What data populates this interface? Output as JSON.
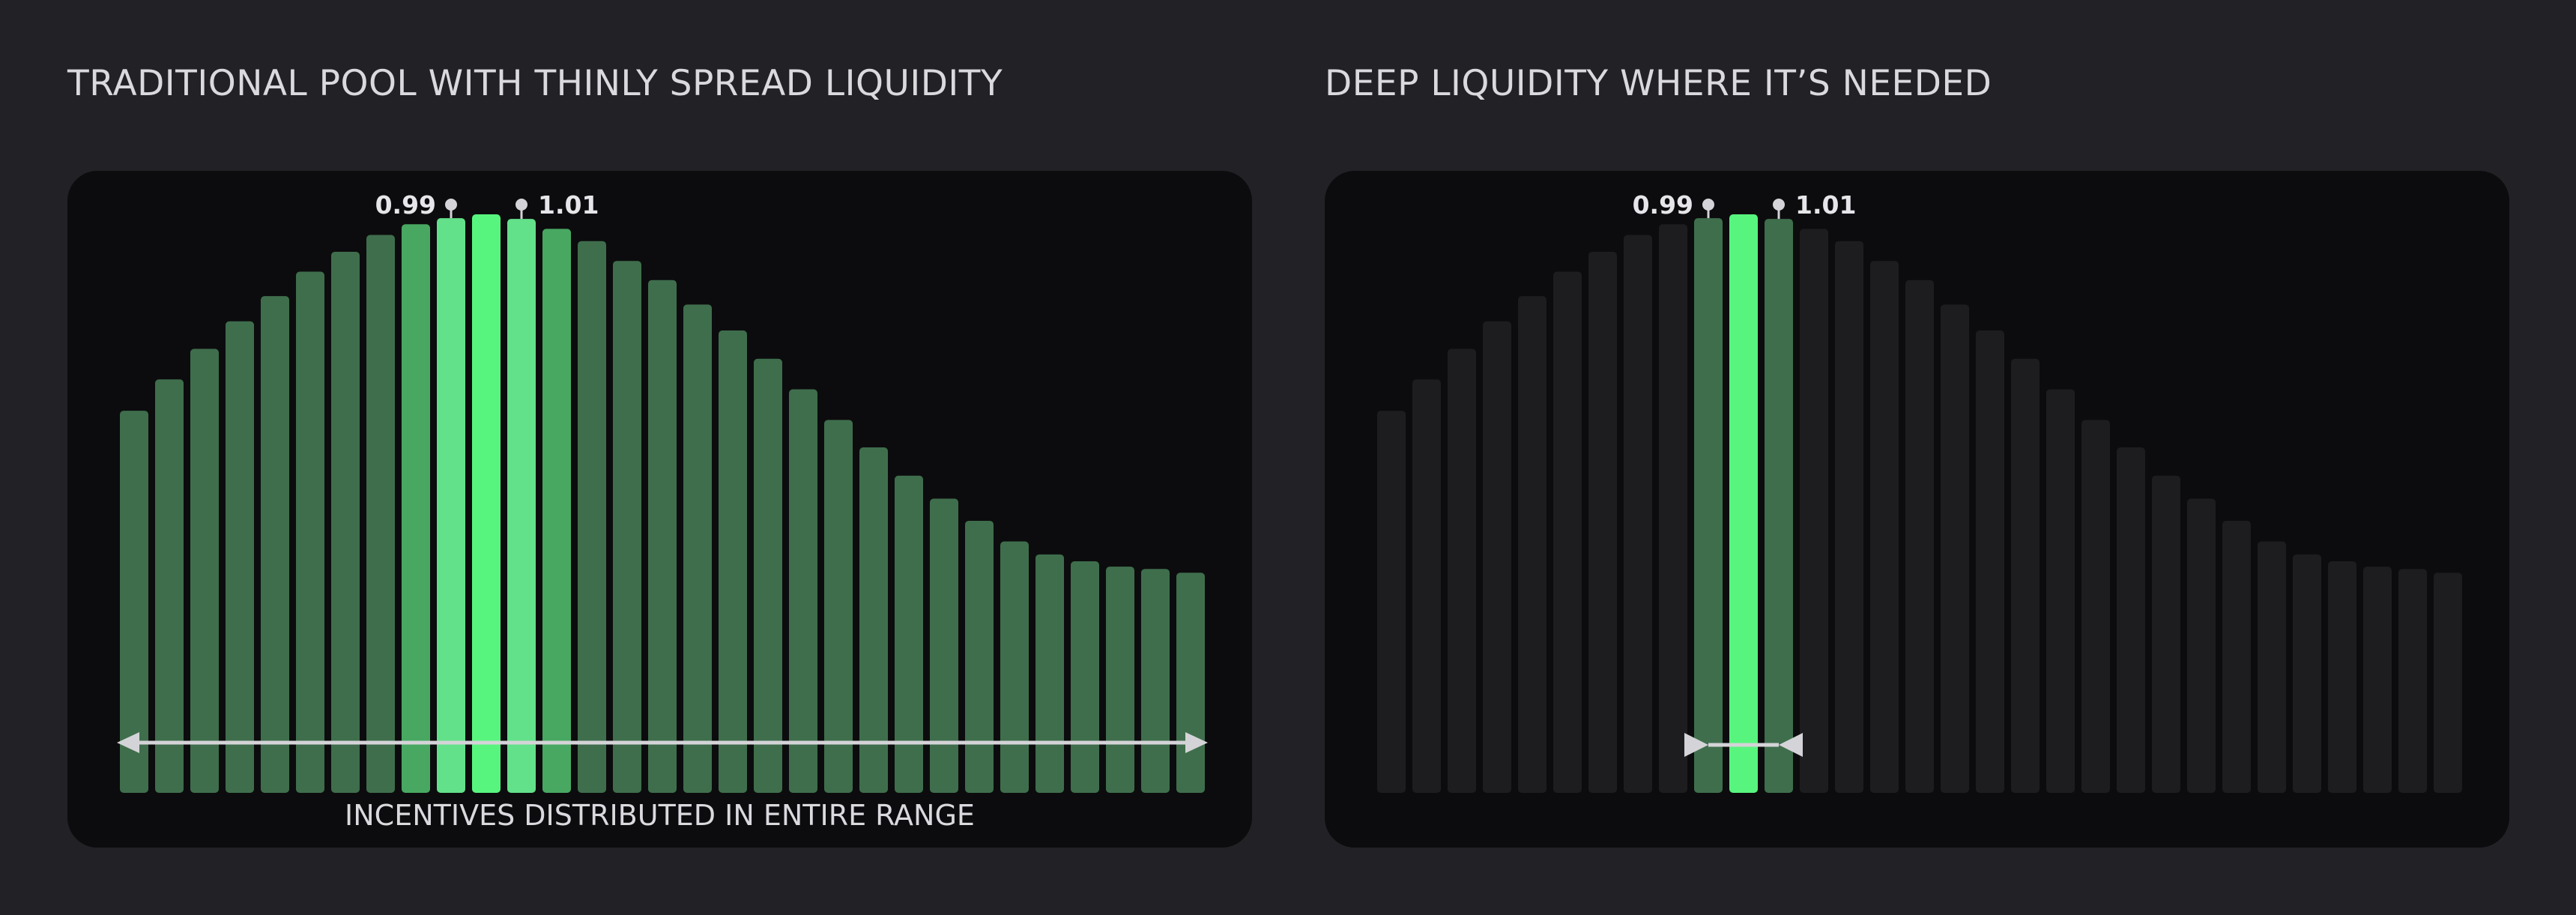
{
  "chart_data": [
    {
      "type": "bar",
      "title": "TRADITIONAL POOL WITH THINLY SPREAD LIQUIDITY",
      "caption": "INCENTIVES DISTRIBUTED IN ENTIRE RANGE",
      "values": [
        500,
        541,
        581,
        617,
        650,
        682,
        708,
        730,
        744,
        752,
        757,
        751,
        738,
        722,
        696,
        671,
        639,
        605,
        568,
        528,
        488,
        452,
        415,
        385,
        356,
        329,
        312,
        303,
        296,
        293,
        288
      ],
      "markers": [
        {
          "label": "0.99",
          "index": 9
        },
        {
          "label": "1.01",
          "index": 11
        }
      ],
      "highlight_indices": [
        8,
        9,
        10,
        11,
        12
      ],
      "peak_index": 10,
      "range_indices": [
        0,
        30
      ],
      "colors": {
        "base": "#3f6e4c",
        "mid": "#48a862",
        "light": "#63e08a",
        "peak": "#58f57e",
        "arrow": "#d4d4d8"
      },
      "grid": false,
      "legend": "none"
    },
    {
      "type": "bar",
      "title": "DEEP LIQUIDITY WHERE IT’S NEEDED",
      "values": [
        500,
        541,
        581,
        617,
        650,
        682,
        708,
        730,
        744,
        752,
        757,
        751,
        738,
        722,
        696,
        671,
        639,
        605,
        568,
        528,
        488,
        452,
        415,
        385,
        356,
        329,
        312,
        303,
        296,
        293,
        288
      ],
      "markers": [
        {
          "label": "0.99",
          "index": 9
        },
        {
          "label": "1.01",
          "index": 11
        }
      ],
      "highlight_indices": [
        9,
        10,
        11
      ],
      "peak_index": 10,
      "range_indices": [
        9,
        11
      ],
      "colors": {
        "base": "#1d1d20",
        "mid": "#3f6e4c",
        "light": "#3f6e4c",
        "peak": "#58f57e",
        "arrow": "#d4d4d8"
      },
      "grid": false,
      "legend": "none"
    }
  ]
}
